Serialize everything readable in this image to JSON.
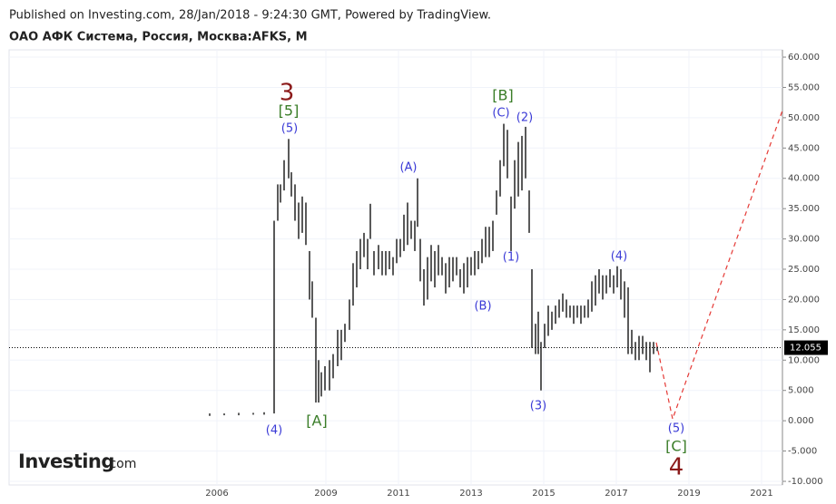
{
  "header": {
    "published": "Published on Investing.com, 28/Jan/2018 - 9:24:30 GMT, Powered by TradingView.",
    "symbol": "ОАО АФК Система, Россия, Москва:AFKS, M"
  },
  "logo": {
    "brand": "Investing",
    "suffix": ".com"
  },
  "chart_data": {
    "type": "range-bar",
    "grid": true,
    "xlim": [
      2000.275,
      2021.575
    ],
    "ylim": [
      -10.6,
      61.2
    ],
    "xticks": [
      2006,
      2009,
      2011,
      2013,
      2015,
      2017,
      2019,
      2021
    ],
    "yticks": [
      {
        "value": 60,
        "label": "60.000"
      },
      {
        "value": 55,
        "label": "55.000"
      },
      {
        "value": 50,
        "label": "50.000"
      },
      {
        "value": 45,
        "label": "45.000"
      },
      {
        "value": 40,
        "label": "40.000"
      },
      {
        "value": 35,
        "label": "35.000"
      },
      {
        "value": 30,
        "label": "30.000"
      },
      {
        "value": 25,
        "label": "25.000"
      },
      {
        "value": 20,
        "label": "20.000"
      },
      {
        "value": 15,
        "label": "15.000"
      },
      {
        "value": 10,
        "label": "10.000"
      },
      {
        "value": 5,
        "label": "5.000"
      },
      {
        "value": 0,
        "label": "0.000"
      },
      {
        "value": -5,
        "label": "-5.000"
      },
      {
        "value": -10,
        "label": "-10.000"
      }
    ],
    "series": {
      "color": "#000000",
      "x": [
        2005.8,
        2006.2,
        2006.6,
        2007.0,
        2007.3,
        2007.575,
        2007.675,
        2007.75,
        2007.85,
        2007.975,
        2008.05,
        2008.15,
        2008.25,
        2008.35,
        2008.45,
        2008.55,
        2008.625,
        2008.725,
        2008.8,
        2008.875,
        2008.975,
        2009.1,
        2009.2,
        2009.325,
        2009.425,
        2009.525,
        2009.65,
        2009.75,
        2009.85,
        2009.95,
        2010.05,
        2010.15,
        2010.225,
        2010.325,
        2010.45,
        2010.55,
        2010.65,
        2010.75,
        2010.85,
        2010.95,
        2011.05,
        2011.15,
        2011.25,
        2011.35,
        2011.45,
        2011.525,
        2011.6,
        2011.7,
        2011.8,
        2011.9,
        2012.0,
        2012.1,
        2012.2,
        2012.3,
        2012.4,
        2012.5,
        2012.6,
        2012.7,
        2012.8,
        2012.9,
        2013.0,
        2013.1,
        2013.2,
        2013.3,
        2013.4,
        2013.5,
        2013.6,
        2013.7,
        2013.8,
        2013.9,
        2014.0,
        2014.1,
        2014.2,
        2014.3,
        2014.4,
        2014.5,
        2014.6,
        2014.675,
        2014.775,
        2014.85,
        2014.925,
        2015.025,
        2015.125,
        2015.225,
        2015.325,
        2015.425,
        2015.525,
        2015.625,
        2015.725,
        2015.825,
        2015.925,
        2016.025,
        2016.125,
        2016.225,
        2016.325,
        2016.425,
        2016.525,
        2016.625,
        2016.725,
        2016.825,
        2016.925,
        2017.025,
        2017.125,
        2017.225,
        2017.325,
        2017.425,
        2017.525,
        2017.625,
        2017.725,
        2017.825,
        2017.925,
        2018.025,
        2018.125
      ],
      "high": [
        1.2,
        1.2,
        1.3,
        1.3,
        1.4,
        33,
        39,
        39,
        43,
        46.5,
        41,
        39,
        36,
        37,
        36,
        28,
        23,
        17,
        10,
        8,
        9,
        10,
        11,
        15,
        15,
        16,
        20,
        26,
        28,
        30,
        31,
        30,
        35.8,
        28,
        29,
        28,
        28,
        28,
        27,
        30,
        30,
        34,
        36,
        33,
        33,
        40,
        30,
        25,
        27,
        29,
        28,
        29,
        27,
        26,
        27,
        27,
        27,
        25,
        26,
        27,
        27,
        28,
        28,
        30,
        32,
        32,
        33,
        38,
        43,
        49,
        48,
        37,
        43,
        46,
        47,
        48.5,
        38,
        25,
        16,
        18,
        13,
        16,
        19,
        18,
        19,
        20,
        21,
        20,
        19,
        19,
        19,
        19,
        19,
        20,
        23,
        24,
        25,
        24,
        24,
        25,
        24,
        25.5,
        25,
        23,
        22,
        15,
        13,
        14,
        14,
        13,
        13,
        13,
        12.3
      ],
      "low": [
        0.8,
        0.9,
        0.9,
        1.0,
        1.0,
        1.2,
        33,
        36,
        38,
        40,
        37,
        33,
        30,
        31,
        29,
        20,
        17,
        3,
        3,
        4,
        5,
        5,
        7,
        9,
        10,
        13,
        15,
        19,
        22,
        25,
        27,
        25,
        30,
        24,
        25,
        24,
        24,
        25,
        24,
        26,
        27,
        28,
        29,
        30,
        28,
        32,
        23,
        19,
        20,
        23,
        22,
        24,
        24,
        21,
        22,
        23,
        24,
        22,
        21,
        22,
        24,
        24,
        25,
        26,
        27,
        27,
        28,
        34,
        37,
        42,
        40,
        28,
        35,
        37,
        38,
        40,
        31,
        12,
        11,
        11,
        5,
        12,
        14,
        15,
        16,
        17,
        18,
        17,
        17,
        16,
        17,
        16,
        17,
        17,
        18,
        19,
        21,
        20,
        21,
        22,
        21,
        22,
        20,
        17,
        11,
        11,
        10,
        10,
        11,
        10,
        8,
        11,
        11.5
      ]
    },
    "projection": {
      "color": "#e53935",
      "x": [
        2018.1,
        2018.55,
        2021.575
      ],
      "y": [
        12.9,
        0.3,
        51.2
      ]
    },
    "last_price": 12.055,
    "annotations": [
      {
        "text": "3",
        "color": "#8b1a1a"
      },
      {
        "text": "[5]",
        "color": "#3a7d28"
      },
      {
        "text": "(5)",
        "color": "#3a3ad6"
      },
      {
        "text": "(4)",
        "color": "#3a3ad6"
      },
      {
        "text": "[A]",
        "color": "#3a7d28"
      },
      {
        "text": "(A)",
        "color": "#3a3ad6"
      },
      {
        "text": "(B)",
        "color": "#3a3ad6"
      },
      {
        "text": "[B]",
        "color": "#3a7d28"
      },
      {
        "text": "(C)",
        "color": "#3a3ad6"
      },
      {
        "text": "(2)",
        "color": "#3a3ad6"
      },
      {
        "text": "(1)",
        "color": "#3a3ad6"
      },
      {
        "text": "(3)",
        "color": "#3a3ad6"
      },
      {
        "text": "(4)",
        "color": "#3a3ad6"
      },
      {
        "text": "(5)",
        "color": "#3a3ad6"
      },
      {
        "text": "[C]",
        "color": "#3a7d28"
      },
      {
        "text": "4",
        "color": "#8b1a1a"
      }
    ]
  }
}
